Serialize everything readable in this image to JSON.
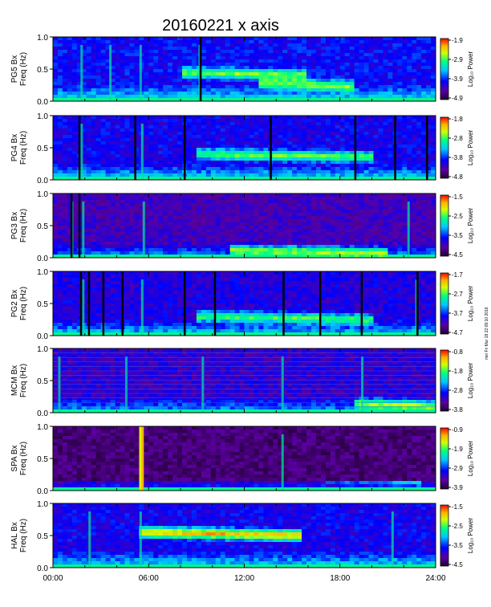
{
  "chart_data": {
    "type": "heatmap",
    "title": "20160221 x axis",
    "x_tick_labels": [
      "00:00",
      "06:00",
      "12:00",
      "18:00",
      "24:00"
    ],
    "x_range_hours": [
      0,
      24
    ],
    "freq_range_hz": [
      0.0,
      1.0
    ],
    "y_tick_labels": [
      "0.0",
      "0.5",
      "1.0"
    ],
    "colorbar_label": "Log₁₀ Power",
    "colorscale": [
      "#200030",
      "#5a00a0",
      "#0000ff",
      "#00c8ff",
      "#00ff80",
      "#d0ff00",
      "#ffb000",
      "#ff0000"
    ],
    "panels": [
      {
        "station": "PG5",
        "ylabel": [
          "PG5 Bx",
          "Freq (Hz)"
        ],
        "colorbar_ticks": [
          "-1.9",
          "-2.9",
          "-3.9",
          "-4.9"
        ]
      },
      {
        "station": "PG4",
        "ylabel": [
          "PG4 Bx",
          "Freq (Hz)"
        ],
        "colorbar_ticks": [
          "-1.8",
          "-2.8",
          "-3.8",
          "-4.8"
        ]
      },
      {
        "station": "PG3",
        "ylabel": [
          "PG3 Bx",
          "Freq (Hz)"
        ],
        "colorbar_ticks": [
          "-1.5",
          "-2.5",
          "-3.5",
          "-4.5"
        ]
      },
      {
        "station": "PG2",
        "ylabel": [
          "PG2 Bx",
          "Freq (Hz)"
        ],
        "colorbar_ticks": [
          "-1.7",
          "-2.7",
          "-3.7",
          "-4.7"
        ]
      },
      {
        "station": "MCM",
        "ylabel": [
          "MCM Bx",
          "Freq (Hz)"
        ],
        "colorbar_ticks": [
          "-0.8",
          "-1.8",
          "-2.8",
          "-3.8"
        ]
      },
      {
        "station": "SPA",
        "ylabel": [
          "SPA Bx",
          "Freq (Hz)"
        ],
        "colorbar_ticks": [
          "-0.9",
          "-1.9",
          "-2.9",
          "-3.9"
        ]
      },
      {
        "station": "HAL",
        "ylabel": [
          "HAL Bx",
          "Freq (Hz)"
        ],
        "colorbar_ticks": [
          "-1.5",
          "-2.5",
          "-3.5",
          "-4.5"
        ]
      }
    ]
  },
  "side_note": "mei Fri Mar 18 22:09:10 2016"
}
